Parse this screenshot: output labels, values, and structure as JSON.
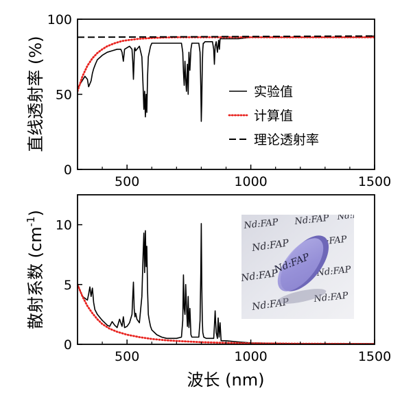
{
  "chart_data": [
    {
      "type": "line",
      "id": "transmittance",
      "ylabel": "直线透射率 (%)",
      "xlim": [
        300,
        1500
      ],
      "ylim": [
        0,
        100
      ],
      "xticks": [
        500,
        1000,
        1500
      ],
      "yticks": [
        0,
        50,
        100
      ],
      "legend_position": "center-right",
      "series": [
        {
          "name": "实验值",
          "style": "solid",
          "color": "#000000",
          "x": [
            300,
            315,
            330,
            340,
            345,
            350,
            355,
            360,
            365,
            372,
            380,
            400,
            420,
            440,
            460,
            475,
            480,
            485,
            490,
            500,
            510,
            520,
            523,
            526,
            528,
            530,
            532,
            535,
            540,
            550,
            560,
            565,
            568,
            571,
            574,
            577,
            580,
            583,
            586,
            590,
            595,
            600,
            620,
            640,
            660,
            680,
            700,
            720,
            725,
            728,
            731,
            734,
            737,
            740,
            744,
            747,
            750,
            754,
            758,
            762,
            770,
            780,
            790,
            795,
            798,
            800,
            802,
            804,
            806,
            808,
            810,
            815,
            830,
            845,
            850,
            853,
            856,
            860,
            865,
            870,
            873,
            876,
            880,
            885,
            900,
            950,
            1000,
            1100,
            1200,
            1300,
            1400,
            1450,
            1480,
            1500
          ],
          "y": [
            54,
            58,
            62,
            60,
            55,
            57,
            59,
            64,
            67,
            70,
            73,
            76,
            78,
            79,
            80,
            80,
            78,
            72,
            80,
            81,
            82,
            80,
            72,
            60,
            70,
            80,
            81,
            79,
            80,
            82,
            75,
            55,
            40,
            52,
            35,
            50,
            38,
            62,
            75,
            78,
            82,
            84,
            84,
            84,
            84,
            84,
            84,
            84,
            78,
            65,
            56,
            72,
            60,
            52,
            70,
            50,
            78,
            66,
            80,
            84,
            84,
            84,
            84,
            78,
            55,
            32,
            45,
            70,
            80,
            84,
            84,
            85,
            85,
            85,
            80,
            70,
            82,
            85,
            78,
            86,
            80,
            87,
            87,
            87,
            87,
            87,
            88,
            88,
            88,
            88,
            88,
            88,
            88,
            89
          ]
        },
        {
          "name": "计算值",
          "style": "dotted",
          "color": "#e8231f",
          "x": [
            300,
            320,
            340,
            360,
            380,
            400,
            420,
            450,
            480,
            500,
            550,
            600,
            650,
            700,
            800,
            900,
            1000,
            1200,
            1500
          ],
          "y": [
            52,
            62,
            69,
            74,
            77.5,
            80,
            82,
            84,
            85.5,
            86,
            87,
            87.5,
            87.8,
            88,
            88,
            88,
            88,
            88,
            88
          ]
        },
        {
          "name": "理论透射率",
          "style": "dashed",
          "color": "#000000",
          "x": [
            300,
            1500
          ],
          "y": [
            88,
            88.8
          ]
        }
      ]
    },
    {
      "type": "line",
      "id": "scattering",
      "xlabel": "波长 (nm)",
      "ylabel": "散射系数 (cm-1)",
      "xlim": [
        300,
        1500
      ],
      "ylim": [
        0,
        12.5
      ],
      "xticks": [
        500,
        1000,
        1500
      ],
      "yticks": [
        0,
        5,
        10
      ],
      "series": [
        {
          "style": "solid",
          "color": "#000000",
          "x": [
            300,
            320,
            340,
            345,
            350,
            355,
            360,
            365,
            370,
            380,
            400,
            420,
            430,
            440,
            450,
            460,
            470,
            480,
            485,
            490,
            500,
            510,
            520,
            523,
            526,
            529,
            532,
            535,
            540,
            550,
            560,
            565,
            568,
            571,
            574,
            577,
            580,
            583,
            586,
            590,
            595,
            600,
            620,
            640,
            660,
            680,
            700,
            720,
            725,
            728,
            731,
            734,
            737,
            740,
            744,
            747,
            750,
            754,
            758,
            762,
            770,
            780,
            790,
            795,
            798,
            800,
            802,
            804,
            806,
            808,
            810,
            820,
            840,
            850,
            853,
            856,
            860,
            865,
            868,
            872,
            876,
            880,
            900,
            950,
            1000,
            1100,
            1200,
            1500
          ],
          "y": [
            5.0,
            4.0,
            3.7,
            4.2,
            4.8,
            4.0,
            4.7,
            3.5,
            2.9,
            2.5,
            2.0,
            1.6,
            1.5,
            1.9,
            1.6,
            1.4,
            2.1,
            1.5,
            2.3,
            1.4,
            1.5,
            1.8,
            2.5,
            4.0,
            5.2,
            3.0,
            2.3,
            2.6,
            2.1,
            1.8,
            4.0,
            7.5,
            9.3,
            6.0,
            9.5,
            6.5,
            8.2,
            4.5,
            2.5,
            2.0,
            1.5,
            1.2,
            0.8,
            0.6,
            0.5,
            0.5,
            0.5,
            0.6,
            2.0,
            5.8,
            3.0,
            2.5,
            5.0,
            3.2,
            1.5,
            4.0,
            1.4,
            3.0,
            0.8,
            0.6,
            0.6,
            0.6,
            0.6,
            2.0,
            6.0,
            10.1,
            5.0,
            2.0,
            1.0,
            0.8,
            0.6,
            0.5,
            0.5,
            0.5,
            1.5,
            2.8,
            1.0,
            0.5,
            2.2,
            0.6,
            1.8,
            0.3,
            0.3,
            0.2,
            0.12,
            0.08,
            0.06,
            0.05
          ]
        },
        {
          "style": "dotted",
          "color": "#e8231f",
          "x": [
            300,
            320,
            340,
            360,
            380,
            400,
            430,
            460,
            500,
            550,
            600,
            650,
            700,
            800,
            900,
            1000,
            1200,
            1500
          ],
          "y": [
            5.0,
            4.0,
            3.2,
            2.6,
            2.1,
            1.7,
            1.3,
            1.05,
            0.8,
            0.6,
            0.45,
            0.35,
            0.28,
            0.18,
            0.12,
            0.08,
            0.05,
            0.03
          ]
        }
      ],
      "inset": {
        "kind": "photo",
        "caption_texts": [
          "Nd:FAP"
        ]
      }
    }
  ]
}
